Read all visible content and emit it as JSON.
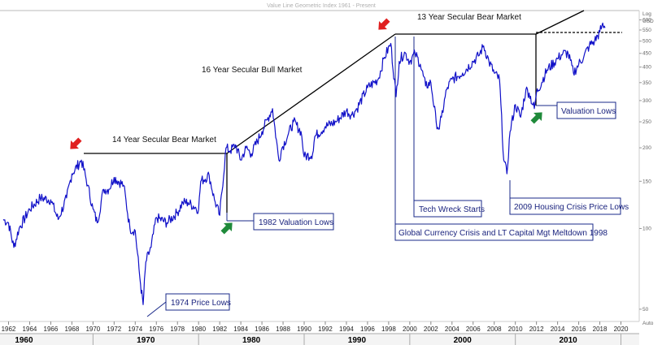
{
  "chart_data": {
    "type": "line",
    "title": "Value Line Geometric Index 1961 - Present",
    "y_scale_label": "Log",
    "y_unit": "USD",
    "x_tick_labels": [
      "1962",
      "1964",
      "1966",
      "1968",
      "1970",
      "1972",
      "1974",
      "1976",
      "1978",
      "1980",
      "1982",
      "1984",
      "1986",
      "1988",
      "1990",
      "1992",
      "1994",
      "1996",
      "1998",
      "2000",
      "2002",
      "2004",
      "2006",
      "2008",
      "2010",
      "2012",
      "2014",
      "2016",
      "2018",
      "2020"
    ],
    "decade_labels": [
      "1960",
      "1970",
      "1980",
      "1990",
      "2000",
      "2010"
    ],
    "y_tick_labels": [
      "600",
      "550",
      "500",
      "450",
      "400",
      "350",
      "300",
      "250",
      "200",
      "150",
      "100",
      "50"
    ],
    "xlim": [
      1961.5,
      2020.5
    ],
    "ylim": [
      45,
      650
    ],
    "auto_label": "Auto",
    "series": [
      {
        "x": [
          1961.5,
          1962.0,
          1962.5,
          1963.0,
          1964.0,
          1965.0,
          1966.0,
          1966.7,
          1967.5,
          1968.0,
          1968.9,
          1969.5,
          1970.0,
          1970.4,
          1971.0,
          1971.5,
          1972.0,
          1972.9,
          1973.5,
          1974.0,
          1974.5,
          1974.75,
          1975.0,
          1975.5,
          1976.0,
          1977.0,
          1978.0,
          1978.5,
          1979.0,
          1980.0,
          1980.2,
          1981.0,
          1981.5,
          1982.0,
          1982.6,
          1983.0,
          1983.5,
          1984.0,
          1984.5,
          1985.0,
          1986.0,
          1986.5,
          1987.0,
          1987.6,
          1987.9,
          1988.5,
          1989.0,
          1989.7,
          1990.0,
          1990.8,
          1991.0,
          1992.0,
          1993.0,
          1994.0,
          1994.5,
          1995.0,
          1996.0,
          1997.0,
          1997.6,
          1998.2,
          1998.7,
          1999.0,
          1999.5,
          2000.0,
          2000.5,
          2001.0,
          2001.5,
          2002.0,
          2002.5,
          2002.8,
          2003.0,
          2003.5,
          2004.0,
          2005.0,
          2006.0,
          2006.5,
          2007.0,
          2007.5,
          2008.0,
          2008.5,
          2008.9,
          2009.2,
          2009.5,
          2010.0,
          2010.5,
          2011.0,
          2011.3,
          2011.8,
          2012.0,
          2013.0,
          2014.0,
          2014.5,
          2015.0,
          2015.5,
          2016.0,
          2016.5,
          2017.0,
          2017.5,
          2018.0,
          2018.2,
          2018.5
        ],
        "y": [
          108,
          105,
          85,
          100,
          118,
          130,
          128,
          108,
          130,
          160,
          180,
          145,
          118,
          105,
          140,
          140,
          155,
          145,
          100,
          98,
          62,
          52,
          75,
          85,
          110,
          105,
          115,
          125,
          125,
          118,
          150,
          158,
          128,
          112,
          200,
          195,
          205,
          180,
          200,
          190,
          230,
          255,
          280,
          180,
          200,
          225,
          250,
          230,
          185,
          190,
          220,
          240,
          250,
          275,
          265,
          280,
          335,
          360,
          435,
          490,
          310,
          420,
          455,
          420,
          450,
          410,
          340,
          350,
          250,
          235,
          260,
          330,
          360,
          380,
          420,
          440,
          480,
          420,
          380,
          360,
          180,
          160,
          230,
          290,
          260,
          330,
          320,
          280,
          320,
          390,
          430,
          450,
          450,
          380,
          410,
          440,
          480,
          500,
          540,
          570,
          560
        ]
      }
    ],
    "regimes": [
      {
        "label": "14 Year Secular Bear Market"
      },
      {
        "label": "16 Year Secular Bull Market"
      },
      {
        "label": "13 Year Secular Bear Market"
      }
    ],
    "annotations": [
      {
        "label": "1974  Price Lows"
      },
      {
        "label": "1982 Valuation Lows"
      },
      {
        "label": "Tech Wreck Starts"
      },
      {
        "label": "Global Currency Crisis and LT Capital Mgt Meltdown 1998"
      },
      {
        "label": "2009 Housing Crisis Price Lows"
      },
      {
        "label": "Valuation Lows"
      }
    ],
    "markers": [
      {
        "type": "peak",
        "year": 1968.9,
        "color": "#e02020"
      },
      {
        "type": "peak",
        "year": 1998.0,
        "color": "#e02020"
      },
      {
        "type": "trough",
        "year": 1982.6,
        "color": "#1f8a3a"
      },
      {
        "type": "trough",
        "year": 2011.8,
        "color": "#1f8a3a"
      }
    ],
    "line_color": "#1010c8",
    "grid": false
  }
}
